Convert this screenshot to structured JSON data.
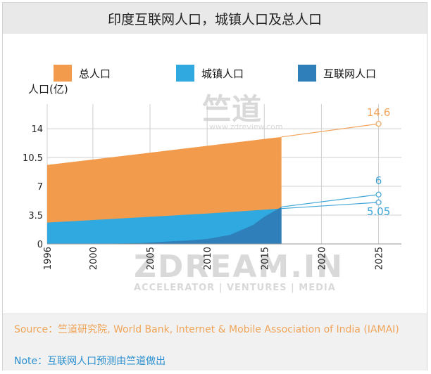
{
  "title": "印度互联网人口，城镇人口及总人口",
  "watermark": {
    "brand_cn": "竺道",
    "site": "www.zdreview.com",
    "brand_en": "ZDREAM.IN",
    "tagline": "ACCELERATOR | VENTURES | MEDIA"
  },
  "colors": {
    "total": "#f29b4d",
    "urban": "#2fa9df",
    "internet": "#2f80ba",
    "total_line": "#f2a45b",
    "forecast_blue": "#3fa6d8"
  },
  "chart_data": {
    "type": "area",
    "ylabel": "人口(亿)",
    "ylim": [
      0,
      17
    ],
    "xlim": [
      1996,
      2027
    ],
    "y_ticks": [
      0,
      3.5,
      7,
      10.5,
      14
    ],
    "y_tick_labels": [
      "0",
      "3.5",
      "7",
      "10.5",
      "14"
    ],
    "x_ticks": [
      1996,
      2000,
      2005,
      2010,
      2015,
      2020,
      2025
    ],
    "x_tick_labels": [
      "1996",
      "2000",
      "2005",
      "2010",
      "2015",
      "2020",
      "2025"
    ],
    "grid": true,
    "legend": "top",
    "series": [
      {
        "name": "总人口",
        "key": "total",
        "x": [
          1996,
          2016.5
        ],
        "y": [
          9.6,
          13.0
        ],
        "forecast": {
          "x": [
            2016.5,
            2025
          ],
          "y": [
            13.0,
            14.6
          ],
          "label": "14.6"
        }
      },
      {
        "name": "城镇人口",
        "key": "urban",
        "x": [
          1996,
          2000,
          2005,
          2010,
          2016.5
        ],
        "y": [
          2.6,
          2.9,
          3.3,
          3.7,
          4.3
        ],
        "forecast": {
          "x": [
            2016.5,
            2025
          ],
          "y": [
            4.3,
            5.05
          ],
          "label": "5.05"
        }
      },
      {
        "name": "互联网人口",
        "key": "internet",
        "x": [
          1996,
          2000,
          2004,
          2008,
          2010,
          2012,
          2014,
          2015,
          2016.5
        ],
        "y": [
          0,
          0,
          0.1,
          0.4,
          0.6,
          1.1,
          2.3,
          3.3,
          4.5
        ],
        "forecast": {
          "x": [
            2016.5,
            2025
          ],
          "y": [
            4.5,
            6.0
          ],
          "label": "6"
        }
      }
    ]
  },
  "footer": {
    "source": "Source：竺道研究院, World Bank, Internet & Mobile Association of India (IAMAI)",
    "note": "Note：互联网人口预测由竺道做出"
  }
}
